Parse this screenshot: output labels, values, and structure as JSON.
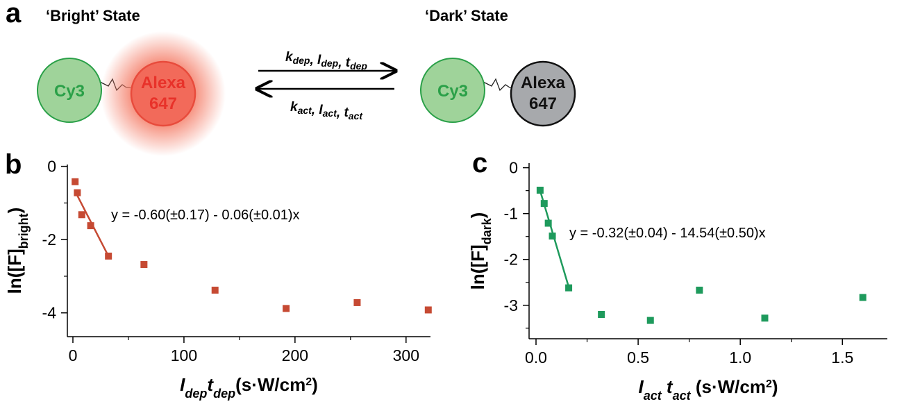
{
  "panel_a": {
    "label": "a",
    "bright_title": "‘Bright’ State",
    "dark_title": "‘Dark’ State",
    "bright": {
      "donor": "Cy3",
      "acceptor": [
        "Alexa",
        "647"
      ]
    },
    "dark": {
      "donor": "Cy3",
      "acceptor": [
        "Alexa",
        "647"
      ]
    },
    "forward": [
      {
        "text": "k",
        "sub": "dep"
      },
      {
        "text": "I",
        "sub": "dep"
      },
      {
        "text": "t",
        "sub": "dep"
      }
    ],
    "backward": [
      {
        "text": "k",
        "sub": "act"
      },
      {
        "text": "I",
        "sub": "act"
      },
      {
        "text": "t",
        "sub": "act"
      }
    ],
    "separator": ", "
  },
  "chart_data": [
    {
      "type": "scatter",
      "panel_label": "b",
      "x": [
        2,
        4,
        8,
        16,
        32,
        64,
        128,
        192,
        256,
        320
      ],
      "values": [
        -0.42,
        -0.72,
        -1.32,
        -1.62,
        -2.45,
        -2.68,
        -3.38,
        -3.88,
        -3.72,
        -3.92
      ],
      "color": "#c64a33",
      "fit": {
        "x": [
          3,
          32
        ],
        "values": [
          -0.74,
          -2.45
        ]
      },
      "annotation": "y = -0.60(±0.17) - 0.06(±0.01)x",
      "xlim": [
        -5,
        322
      ],
      "ylim": [
        -4.65,
        0.05
      ],
      "xticks": [
        0,
        100,
        200,
        300
      ],
      "yticks": [
        0,
        -2,
        -4
      ],
      "minor_xticks": [
        50,
        150,
        250
      ],
      "minor_yticks": [
        -1,
        -3
      ],
      "xlabel": {
        "parts": [
          {
            "text": "I",
            "style": "italic"
          },
          {
            "text": "dep",
            "style": "italic-sub"
          },
          {
            "text": "t",
            "style": "italic"
          },
          {
            "text": "dep",
            "style": "italic-sub"
          },
          {
            "text": "(s·W/cm",
            "style": "normal"
          },
          {
            "text": "2",
            "style": "sup"
          },
          {
            "text": ")",
            "style": "normal"
          }
        ]
      },
      "ylabel": {
        "parts": [
          {
            "text": "ln([F]",
            "style": "normal"
          },
          {
            "text": "bright",
            "style": "sub"
          },
          {
            "text": ")",
            "style": "normal"
          }
        ]
      }
    },
    {
      "type": "scatter",
      "panel_label": "c",
      "x": [
        0.02,
        0.04,
        0.06,
        0.08,
        0.16,
        0.32,
        0.56,
        0.8,
        1.12,
        1.6
      ],
      "values": [
        -0.49,
        -0.78,
        -1.21,
        -1.49,
        -2.62,
        -3.2,
        -3.33,
        -2.67,
        -3.28,
        -2.83
      ],
      "color": "#1e9a5c",
      "fit": {
        "x": [
          0.02,
          0.16
        ],
        "values": [
          -0.5,
          -2.6
        ]
      },
      "annotation": "y = -0.32(±0.04) - 14.54(±0.50)x",
      "xlim": [
        -0.034,
        1.72
      ],
      "ylim": [
        -3.73,
        0.1
      ],
      "xticks": [
        {
          "value": 0,
          "label": "0.0"
        },
        0.5,
        {
          "value": 1,
          "label": "1.0"
        },
        1.5
      ],
      "yticks": [
        0,
        -1,
        -2,
        -3
      ],
      "minor_xticks": [
        0.25,
        0.75,
        1.25
      ],
      "minor_yticks": [
        -0.5,
        -1.5,
        -2.5,
        -3.5
      ],
      "xlabel": {
        "parts": [
          {
            "text": "I",
            "style": "italic"
          },
          {
            "text": "act",
            "style": "italic-sub"
          },
          {
            "text": " t",
            "style": "italic"
          },
          {
            "text": "act",
            "style": "italic-sub"
          },
          {
            "text": " (s·W/cm",
            "style": "normal"
          },
          {
            "text": "2",
            "style": "sup"
          },
          {
            "text": ")",
            "style": "normal"
          }
        ]
      },
      "ylabel": {
        "parts": [
          {
            "text": "ln([F]",
            "style": "normal"
          },
          {
            "text": "dark",
            "style": "sub"
          },
          {
            "text": ")",
            "style": "normal"
          }
        ]
      }
    }
  ]
}
